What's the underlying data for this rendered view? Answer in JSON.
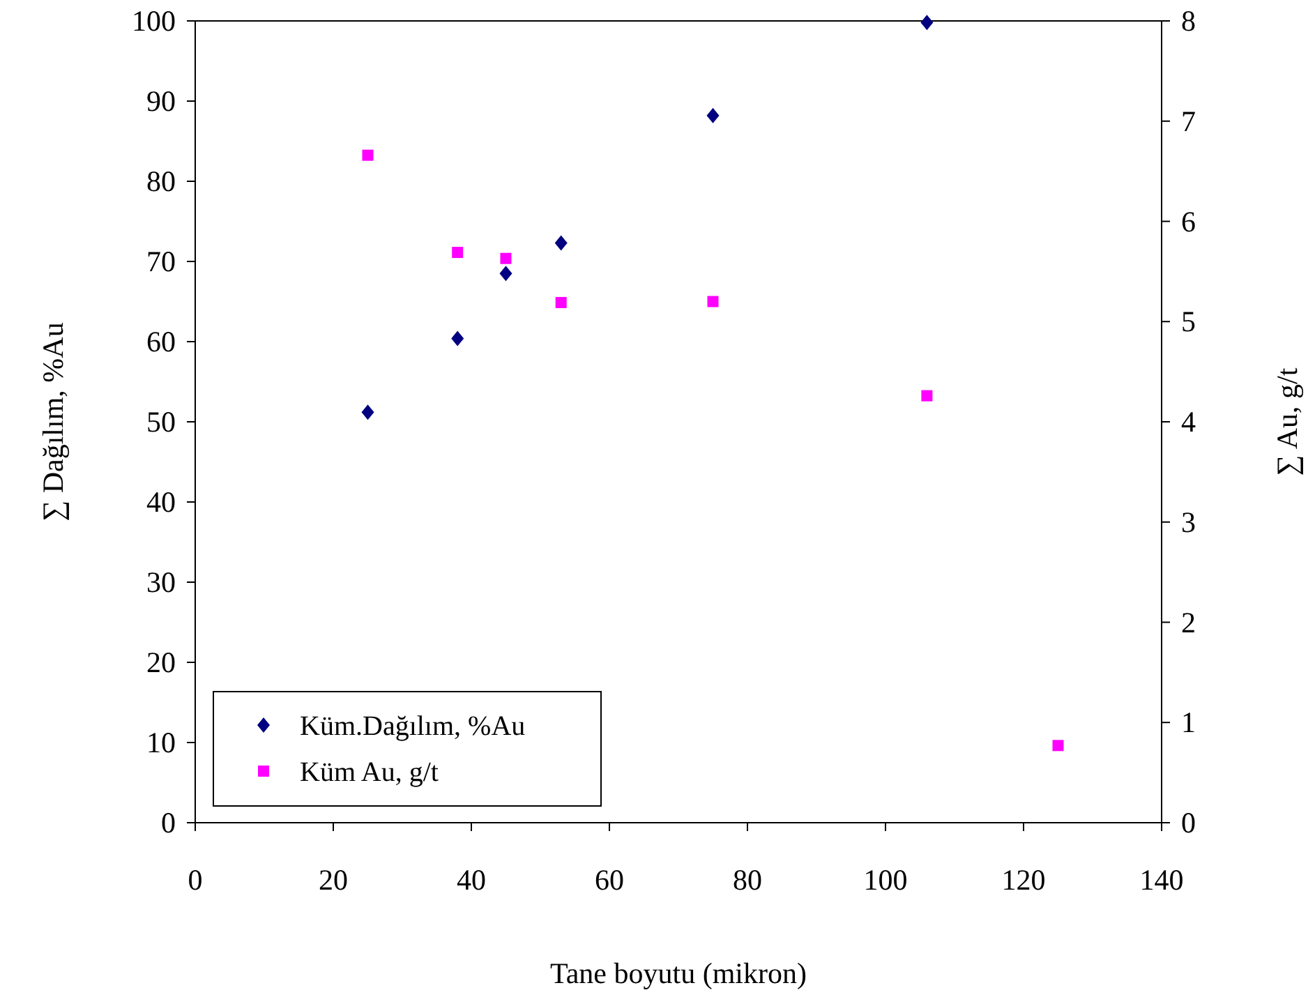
{
  "chart_data": {
    "type": "scatter",
    "xlabel": "Tane boyutu (mikron)",
    "ylabel": "∑ Dağılım, %Au",
    "y2label": "∑ Au, g/t",
    "xlim": [
      0,
      140
    ],
    "xticks": [
      0,
      20,
      40,
      60,
      80,
      100,
      120,
      140
    ],
    "ylim": [
      0,
      100
    ],
    "yticks": [
      0,
      10,
      20,
      30,
      40,
      50,
      60,
      70,
      80,
      90,
      100
    ],
    "y2lim": [
      0,
      8
    ],
    "y2ticks": [
      0,
      1,
      2,
      3,
      4,
      5,
      6,
      7,
      8
    ],
    "grid": false,
    "legend": "bottom left",
    "series": [
      {
        "name": "Küm.Dağılım, %Au",
        "color": "#000080",
        "marker": "diamond",
        "x": [
          25,
          38,
          45,
          53,
          75,
          106
        ],
        "values": [
          51.2,
          60.4,
          68.5,
          72.3,
          88.2,
          99.8
        ]
      },
      {
        "name": "Küm Au, g/t",
        "color": "#ff00ff",
        "marker": "square",
        "axis": "y2",
        "x": [
          25,
          38,
          45,
          53,
          75,
          106,
          125
        ],
        "values": [
          6.66,
          5.69,
          5.63,
          5.19,
          5.2,
          4.26,
          0.77
        ]
      }
    ]
  }
}
